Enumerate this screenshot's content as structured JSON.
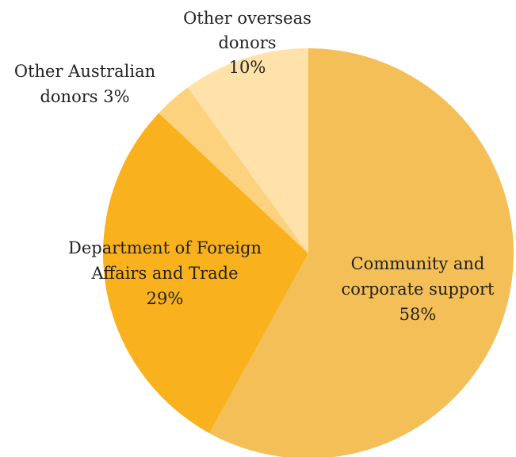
{
  "chart_data": {
    "type": "pie",
    "title": "",
    "slices": [
      {
        "name": "Community and corporate support",
        "value": 58,
        "color": "#F3BF56",
        "label_lines": [
          "Community and",
          "corporate support",
          "58%"
        ]
      },
      {
        "name": "Department of Foreign Affairs and Trade",
        "value": 29,
        "color": "#F9B11E",
        "label_lines": [
          "Department of Foreign",
          "Affairs and Trade",
          "29%"
        ]
      },
      {
        "name": "Other Australian donors",
        "value": 3,
        "color": "#FCD27F",
        "label_lines": [
          "Other Australian",
          "donors  3%"
        ]
      },
      {
        "name": "Other overseas donors",
        "value": 10,
        "color": "#FEE2AA",
        "label_lines": [
          "Other overseas",
          "donors",
          "10%"
        ]
      }
    ],
    "start": "12 o'clock",
    "direction": "clockwise"
  }
}
